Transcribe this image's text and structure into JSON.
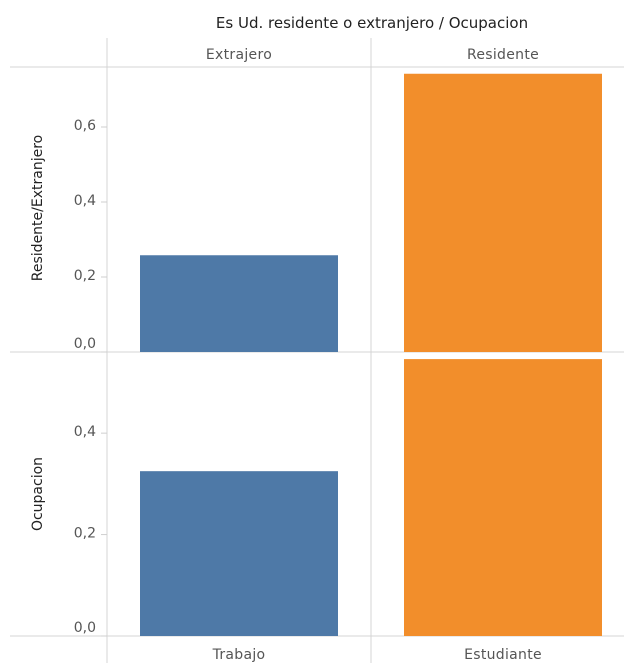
{
  "chart_data": {
    "type": "bar",
    "title": "Es Ud. residente o extranjero / Ocupacion",
    "column_headers": [
      "Extrajero",
      "Residente"
    ],
    "bottom_labels": [
      "Trabajo",
      "Estudiante"
    ],
    "panels": [
      {
        "ylabel": "Residente/Extranjero",
        "ylim": [
          0,
          0.76
        ],
        "ticks": [
          0,
          0.2,
          0.4,
          0.6
        ],
        "tick_labels": [
          "0,0",
          "0,2",
          "0,4",
          "0,6"
        ],
        "series": [
          {
            "category": "Extrajero",
            "value": 0.258,
            "color": "#4e79a7"
          },
          {
            "category": "Residente",
            "value": 0.742,
            "color": "#f28e2b"
          }
        ]
      },
      {
        "ylabel": "Ocupacion",
        "ylim": [
          0,
          0.56
        ],
        "ticks": [
          0,
          0.2,
          0.4
        ],
        "tick_labels": [
          "0,0",
          "0,2",
          "0,4"
        ],
        "series": [
          {
            "category": "Trabajo",
            "value": 0.325,
            "color": "#4e79a7"
          },
          {
            "category": "Estudiante",
            "value": 0.546,
            "color": "#f28e2b"
          }
        ]
      }
    ]
  }
}
